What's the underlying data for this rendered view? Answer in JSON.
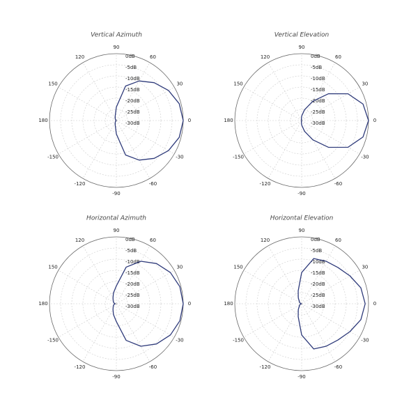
{
  "chart_data": [
    {
      "type": "polar",
      "title": "Vertical Azimuth",
      "color": "#2e3a7a",
      "x": [
        -180,
        -165,
        -150,
        -135,
        -120,
        -105,
        -90,
        -75,
        -60,
        -45,
        -30,
        -15,
        0,
        15,
        30,
        45,
        60,
        75,
        90,
        105,
        120,
        135,
        150,
        165,
        180
      ],
      "values": [
        -30,
        -30,
        -29.8,
        -29.5,
        -29,
        -28,
        -24,
        -14,
        -9.5,
        -6,
        -3,
        -0.8,
        0,
        -0.8,
        -3,
        -6,
        -9.5,
        -14,
        -24,
        -28,
        -29,
        -29.5,
        -29.8,
        -30,
        -30
      ],
      "rlim": [
        -30,
        0
      ],
      "rticks": [
        {
          "value": 0,
          "label": "0dB"
        },
        {
          "value": -5,
          "label": "-5dB"
        },
        {
          "value": -10,
          "label": "-10dB"
        },
        {
          "value": -15,
          "label": "-15dB"
        },
        {
          "value": -20,
          "label": "-20dB"
        },
        {
          "value": -25,
          "label": "-25dB"
        },
        {
          "value": -30,
          "label": "-30dB"
        }
      ],
      "angle_ticks": [
        90,
        60,
        30,
        0,
        -30,
        -60,
        -90,
        -120,
        -150,
        180,
        150,
        120
      ],
      "grid": true
    },
    {
      "type": "polar",
      "title": "Vertical Elevation",
      "color": "#2e3a7a",
      "x": [
        -180,
        -165,
        -150,
        -135,
        -120,
        -105,
        -90,
        -75,
        -60,
        -45,
        -30,
        -15,
        0,
        15,
        30,
        45,
        60,
        75,
        90,
        105,
        120,
        135,
        150,
        165,
        180
      ],
      "values": [
        -30,
        -30,
        -30,
        -30,
        -30,
        -29.5,
        -28,
        -25,
        -20,
        -13,
        -6,
        -1.5,
        0,
        -1.5,
        -6,
        -13,
        -20,
        -25,
        -28,
        -29.5,
        -30,
        -30,
        -30,
        -30,
        -30
      ],
      "rlim": [
        -30,
        0
      ],
      "rticks": [
        {
          "value": 0,
          "label": "0dB"
        },
        {
          "value": -5,
          "label": "-5dB"
        },
        {
          "value": -10,
          "label": "-10dB"
        },
        {
          "value": -15,
          "label": "-15dB"
        },
        {
          "value": -20,
          "label": "-20dB"
        },
        {
          "value": -25,
          "label": "-25dB"
        },
        {
          "value": -30,
          "label": "-30dB"
        }
      ],
      "angle_ticks": [
        90,
        60,
        30,
        0,
        -30,
        -60,
        -90,
        -120,
        -150,
        180,
        150,
        120
      ],
      "grid": true
    },
    {
      "type": "polar",
      "title": "Horizontal Azimuth",
      "color": "#2e3a7a",
      "x": [
        -180,
        -165,
        -150,
        -135,
        -120,
        -105,
        -90,
        -75,
        -60,
        -45,
        -30,
        -15,
        0,
        15,
        30,
        45,
        60,
        75,
        90,
        105,
        120,
        135,
        150,
        165,
        180
      ],
      "values": [
        -29.5,
        -29,
        -28.5,
        -28,
        -27,
        -25,
        -22,
        -13,
        -8,
        -4.5,
        -2,
        -0.5,
        0,
        -0.5,
        -2,
        -4.5,
        -8,
        -13,
        -22,
        -25,
        -27,
        -28,
        -28.5,
        -29,
        -29.5
      ],
      "rlim": [
        -30,
        0
      ],
      "rticks": [
        {
          "value": 0,
          "label": "0dB"
        },
        {
          "value": -5,
          "label": "-5dB"
        },
        {
          "value": -10,
          "label": "-10dB"
        },
        {
          "value": -15,
          "label": "-15dB"
        },
        {
          "value": -20,
          "label": "-20dB"
        },
        {
          "value": -25,
          "label": "-25dB"
        },
        {
          "value": -30,
          "label": "-30dB"
        }
      ],
      "angle_ticks": [
        90,
        60,
        30,
        0,
        -30,
        -60,
        -90,
        -120,
        -150,
        180,
        150,
        120
      ],
      "grid": true
    },
    {
      "type": "polar",
      "title": "Horizontal Elevation",
      "color": "#2e3a7a",
      "x": [
        -180,
        -165,
        -150,
        -135,
        -120,
        -105,
        -90,
        -75,
        -60,
        -45,
        -30,
        -15,
        0,
        15,
        30,
        45,
        60,
        75,
        90,
        105,
        120,
        135,
        150,
        165,
        180
      ],
      "values": [
        -30,
        -29.5,
        -29,
        -28.5,
        -27,
        -24,
        -16,
        -9,
        -8,
        -7,
        -5,
        -2.5,
        -1.5,
        -2.5,
        -5,
        -7,
        -8,
        -9,
        -16,
        -24,
        -27,
        -28.5,
        -29,
        -29.5,
        -30
      ],
      "rlim": [
        -30,
        0
      ],
      "rticks": [
        {
          "value": 0,
          "label": "0dB"
        },
        {
          "value": -5,
          "label": "-5dB"
        },
        {
          "value": -10,
          "label": "-10dB"
        },
        {
          "value": -15,
          "label": "-15dB"
        },
        {
          "value": -20,
          "label": "-20dB"
        },
        {
          "value": -25,
          "label": "-25dB"
        },
        {
          "value": -30,
          "label": "-30dB"
        }
      ],
      "angle_ticks": [
        90,
        60,
        30,
        0,
        -30,
        -60,
        -90,
        -120,
        -150,
        180,
        150,
        120
      ],
      "grid": true
    }
  ]
}
